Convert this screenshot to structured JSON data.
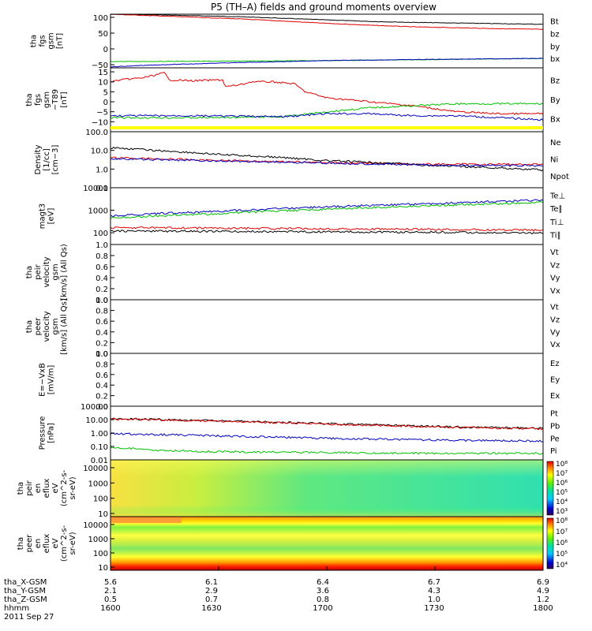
{
  "title": "P5 (TH–A) fields and ground moments overview",
  "date": "2011 Sep 27",
  "colors": {
    "black": "#000000",
    "red": "#e00000",
    "green": "#00c000",
    "blue": "#0000c0",
    "yellow": "#ffff00"
  },
  "chart_data": [
    {
      "type": "line",
      "ylabel": [
        "tha",
        "fgs",
        "gsm",
        "[nT]"
      ],
      "ylim": [
        -60,
        110
      ],
      "yticks": [
        {
          "value": 100,
          "label": "100"
        },
        {
          "value": 50,
          "label": "50"
        },
        {
          "value": 0,
          "label": "0"
        },
        {
          "value": -50,
          "label": "−50"
        }
      ],
      "series": [
        {
          "name": "Bt",
          "color": "#000000",
          "x": [
            1600,
            1620,
            1640,
            1660,
            1680,
            1700,
            1720,
            1740,
            1760,
            1780,
            1800
          ],
          "values": [
            110,
            108,
            105,
            102,
            97,
            92,
            87,
            84,
            82,
            80,
            78
          ]
        },
        {
          "name": "bz",
          "color": "#e00000",
          "x": [
            1600,
            1620,
            1640,
            1660,
            1680,
            1700,
            1720,
            1740,
            1760,
            1780,
            1800
          ],
          "values": [
            110,
            105,
            100,
            95,
            88,
            81,
            75,
            70,
            67,
            64,
            62
          ]
        },
        {
          "name": "by",
          "color": "#00c000",
          "x": [
            1600,
            1650,
            1700,
            1750,
            1800
          ],
          "values": [
            -40,
            -39,
            -37,
            -34,
            -30
          ]
        },
        {
          "name": "bx",
          "color": "#0000c0",
          "x": [
            1600,
            1620,
            1650,
            1700,
            1750,
            1800
          ],
          "values": [
            -57,
            -51,
            -45,
            -37,
            -33,
            -30
          ]
        }
      ]
    },
    {
      "type": "line",
      "ylabel": [
        "tha",
        "fgs",
        "gsm",
        "−T89",
        "[nT]"
      ],
      "ylim": [
        -15,
        17
      ],
      "yticks": [
        {
          "value": 15,
          "label": "15"
        },
        {
          "value": 10,
          "label": "10"
        },
        {
          "value": 5,
          "label": "5"
        },
        {
          "value": 0,
          "label": "0"
        },
        {
          "value": -5,
          "label": "−5"
        },
        {
          "value": -10,
          "label": "−10"
        }
      ],
      "series": [
        {
          "name": "Bz",
          "color": "#e00000",
          "x": [
            1600,
            1605,
            1615,
            1625,
            1627,
            1638,
            1652,
            1653,
            1660,
            1665,
            1675,
            1685,
            1690,
            1700,
            1720,
            1740,
            1760,
            1780,
            1800
          ],
          "values": [
            10,
            11,
            12,
            14.5,
            11,
            10.5,
            11,
            7.5,
            8.5,
            10,
            10,
            9,
            5,
            2,
            0,
            -2,
            -5,
            -6,
            -6
          ]
        },
        {
          "name": "By",
          "color": "#00c000",
          "x": [
            1600,
            1640,
            1680,
            1700,
            1720,
            1740,
            1760,
            1780,
            1800
          ],
          "values": [
            -8,
            -8,
            -7.5,
            -5,
            -3,
            -2,
            -1,
            -1,
            -1
          ]
        },
        {
          "name": "Bx",
          "color": "#0000c0",
          "x": [
            1600,
            1640,
            1680,
            1700,
            1720,
            1740,
            1760,
            1780,
            1800
          ],
          "values": [
            -7,
            -7,
            -7.5,
            -6,
            -6,
            -7,
            -7,
            -8,
            -9
          ]
        }
      ]
    },
    {
      "type": "line",
      "scale": "log",
      "ylabel": [
        "Density",
        "[1/cc]",
        "[cm−3]"
      ],
      "ylim": [
        0.1,
        100
      ],
      "yticks": [
        {
          "value": 100,
          "label": "100.0"
        },
        {
          "value": 10,
          "label": "10.0"
        },
        {
          "value": 1,
          "label": "1.0"
        },
        {
          "value": 0.1,
          "label": "0.1"
        }
      ],
      "series": [
        {
          "name": "Ne",
          "color": "#e00000",
          "x": [
            1600,
            1650,
            1700,
            1750,
            1800
          ],
          "values": [
            4,
            2.9,
            2.2,
            1.8,
            1.8
          ]
        },
        {
          "name": "Ni",
          "color": "#000000",
          "x": [
            1600,
            1620,
            1650,
            1700,
            1750,
            1800
          ],
          "values": [
            14,
            10,
            6,
            2.8,
            1.5,
            0.9
          ]
        },
        {
          "name": "Npot",
          "color": "#0000c0",
          "x": [
            1600,
            1650,
            1700,
            1750,
            1800
          ],
          "values": [
            3.5,
            2.7,
            2.1,
            1.6,
            1.5
          ]
        }
      ]
    },
    {
      "type": "line",
      "scale": "log",
      "ylabel": [
        "magt3",
        "[eV]"
      ],
      "ylim": [
        30,
        10000
      ],
      "yticks": [
        {
          "value": 10000,
          "label": "10000"
        },
        {
          "value": 1000,
          "label": "1000"
        },
        {
          "value": 100,
          "label": "100"
        }
      ],
      "series": [
        {
          "name": "Te⊥",
          "color": "#e00000",
          "x": [
            1600,
            1650,
            1700,
            1750,
            1800
          ],
          "values": [
            170,
            160,
            150,
            140,
            130
          ]
        },
        {
          "name": "Te∥",
          "color": "#000000",
          "x": [
            1600,
            1650,
            1700,
            1750,
            1800
          ],
          "values": [
            120,
            115,
            110,
            105,
            95
          ]
        },
        {
          "name": "Ti⊥",
          "color": "#0000c0",
          "x": [
            1600,
            1650,
            1700,
            1750,
            1800
          ],
          "values": [
            550,
            900,
            1400,
            2000,
            2800
          ]
        },
        {
          "name": "Ti∥",
          "color": "#00c000",
          "x": [
            1600,
            1650,
            1700,
            1750,
            1800
          ],
          "values": [
            450,
            700,
            1100,
            1600,
            2200
          ]
        }
      ]
    },
    {
      "type": "line",
      "ylabel": [
        "tha",
        "peir",
        "velocity",
        "gsm",
        "[km/s] (All Qs)"
      ],
      "ylim": [
        0,
        1
      ],
      "yticks": [
        {
          "value": 1,
          "label": "1.0"
        },
        {
          "value": 0.8,
          "label": "0.8"
        },
        {
          "value": 0.6,
          "label": "0.6"
        },
        {
          "value": 0.4,
          "label": "0.4"
        },
        {
          "value": 0.2,
          "label": "0.2"
        },
        {
          "value": 0,
          "label": "0.0"
        }
      ],
      "series": [
        {
          "name": "Vt",
          "color": "#000000",
          "values": []
        },
        {
          "name": "Vz",
          "color": "#e00000",
          "values": []
        },
        {
          "name": "Vy",
          "color": "#00c000",
          "values": []
        },
        {
          "name": "Vx",
          "color": "#0000c0",
          "values": []
        }
      ]
    },
    {
      "type": "line",
      "ylabel": [
        "tha",
        "peer",
        "velocity",
        "gsm",
        "[km/s] (All Qs)"
      ],
      "ylim": [
        0,
        1
      ],
      "yticks": [
        {
          "value": 1,
          "label": "1.0"
        },
        {
          "value": 0.8,
          "label": "0.8"
        },
        {
          "value": 0.6,
          "label": "0.6"
        },
        {
          "value": 0.4,
          "label": "0.4"
        },
        {
          "value": 0.2,
          "label": "0.2"
        },
        {
          "value": 0,
          "label": "0.0"
        }
      ],
      "series": [
        {
          "name": "Vt",
          "color": "#000000",
          "values": []
        },
        {
          "name": "Vz",
          "color": "#e00000",
          "values": []
        },
        {
          "name": "Vy",
          "color": "#00c000",
          "values": []
        },
        {
          "name": "Vx",
          "color": "#0000c0",
          "values": []
        }
      ]
    },
    {
      "type": "line",
      "ylabel": [
        "E=−VxB",
        "[mV/m]"
      ],
      "ylim": [
        0,
        1
      ],
      "yticks": [
        {
          "value": 1,
          "label": "1.0"
        },
        {
          "value": 0.8,
          "label": "0.8"
        },
        {
          "value": 0.6,
          "label": "0.6"
        },
        {
          "value": 0.4,
          "label": "0.4"
        },
        {
          "value": 0.2,
          "label": "0.2"
        },
        {
          "value": 0,
          "label": "0.0"
        }
      ],
      "series": [
        {
          "name": "Ez",
          "color": "#e00000",
          "values": []
        },
        {
          "name": "Ey",
          "color": "#00c000",
          "values": []
        },
        {
          "name": "Ex",
          "color": "#0000c0",
          "values": []
        }
      ]
    },
    {
      "type": "line",
      "scale": "log",
      "ylabel": [
        "Pressure",
        "[nPa]"
      ],
      "ylim": [
        0.01,
        100
      ],
      "yticks": [
        {
          "value": 100,
          "label": "100.00"
        },
        {
          "value": 10,
          "label": "10.00"
        },
        {
          "value": 1,
          "label": "1.00"
        },
        {
          "value": 0.1,
          "label": "0.10"
        },
        {
          "value": 0.01,
          "label": "0.01"
        }
      ],
      "series": [
        {
          "name": "Pt",
          "color": "#000000",
          "x": [
            1600,
            1650,
            1700,
            1750,
            1800
          ],
          "values": [
            12,
            8,
            5,
            3,
            2.2
          ]
        },
        {
          "name": "Pb",
          "color": "#e00000",
          "x": [
            1600,
            1650,
            1700,
            1750,
            1800
          ],
          "values": [
            11,
            7.5,
            4.5,
            2.8,
            2
          ]
        },
        {
          "name": "Pe",
          "color": "#00c000",
          "x": [
            1600,
            1620,
            1650,
            1700,
            1750,
            1800
          ],
          "values": [
            0.09,
            0.05,
            0.04,
            0.035,
            0.03,
            0.03
          ]
        },
        {
          "name": "Pi",
          "color": "#0000c0",
          "x": [
            1600,
            1650,
            1700,
            1750,
            1800
          ],
          "values": [
            0.9,
            0.6,
            0.4,
            0.3,
            0.25
          ]
        }
      ]
    },
    {
      "type": "heatmap",
      "ylabel": [
        "tha",
        "peir",
        "en",
        "eflux",
        "eV",
        "(cm^2-s-",
        "sr-eV)"
      ],
      "yticks": [
        {
          "label": "10000"
        },
        {
          "label": "1000"
        },
        {
          "label": "100"
        },
        {
          "label": "10"
        }
      ],
      "colorbar_ticks": [
        "10⁸",
        "10⁷",
        "10⁶",
        "10⁵",
        "10⁴",
        "10³"
      ]
    },
    {
      "type": "heatmap",
      "ylabel": [
        "tha",
        "peer",
        "en",
        "eflux",
        "eV",
        "(cm^2-s-",
        "sr-eV)"
      ],
      "yticks": [
        {
          "label": "10000"
        },
        {
          "label": "1000"
        },
        {
          "label": "100"
        },
        {
          "label": "10"
        }
      ],
      "colorbar_ticks": [
        "10⁸",
        "10⁷",
        "10⁶",
        "10⁵",
        "10⁴"
      ]
    }
  ],
  "xaxis": {
    "rows": [
      {
        "label": "tha_X-GSM",
        "values": [
          "5.6",
          "6.1",
          "6.4",
          "6.7",
          "6.9"
        ]
      },
      {
        "label": "tha_Y-GSM",
        "values": [
          "2.1",
          "2.9",
          "3.6",
          "4.3",
          "4.9"
        ]
      },
      {
        "label": "tha_Z-GSM",
        "values": [
          "0.5",
          "0.7",
          "0.8",
          "1.0",
          "1.2"
        ]
      },
      {
        "label": "hhmm",
        "values": [
          "1600",
          "1630",
          "1700",
          "1730",
          "1800"
        ]
      }
    ]
  }
}
